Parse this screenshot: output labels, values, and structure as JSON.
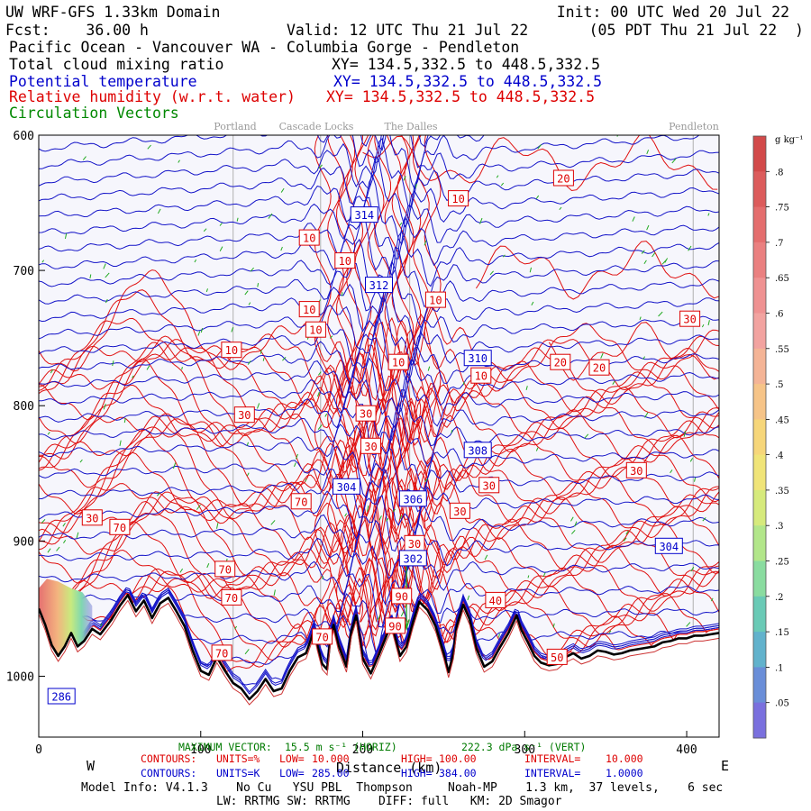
{
  "header": {
    "line1_left": "UW WRF-GFS 1.33km Domain",
    "line1_right": "Init: 00 UTC Wed 20 Jul 22",
    "line2_left": "Fcst:    36.00 h",
    "line2_mid": "Valid: 12 UTC Thu 21 Jul 22",
    "line2_right": "(05 PDT Thu 21 Jul 22  )",
    "line3": "Pacific Ocean - Vancouver WA - Columbia Gorge - Pendleton",
    "fields": [
      {
        "name": "Total cloud mixing ratio",
        "xy": "XY= 134.5,332.5 to 448.5,332.5",
        "color": "#000000"
      },
      {
        "name": "Potential temperature",
        "xy": "XY= 134.5,332.5 to 448.5,332.5",
        "color": "#0000cc"
      },
      {
        "name": "Relative humidity (w.r.t. water)",
        "xy": "XY= 134.5,332.5 to 448.5,332.5",
        "color": "#dd0000"
      },
      {
        "name": "Circulation Vectors",
        "xy": "",
        "color": "#008800"
      }
    ]
  },
  "locations": [
    "Portland",
    "Cascade Locks",
    "The Dalles",
    "Pendleton"
  ],
  "colorbar": {
    "unit": "g kg⁻¹",
    "labels": [
      ".8",
      ".75",
      ".7",
      ".65",
      ".6",
      ".55",
      ".5",
      ".45",
      ".4",
      ".35",
      ".3",
      ".25",
      ".2",
      ".15",
      ".1",
      ".05"
    ],
    "colors": [
      "#d24a4a",
      "#dc5c5c",
      "#e46e6e",
      "#ea8080",
      "#ef9292",
      "#f2a3a0",
      "#f4b496",
      "#f6c488",
      "#f6d67a",
      "#f0e478",
      "#d6ea7c",
      "#b2e68a",
      "#8adca0",
      "#6acab6",
      "#62b2cc",
      "#6a8ed8",
      "#7a70de"
    ]
  },
  "footer": {
    "max_vector_label": "MAXIMUM VECTOR:",
    "max_vector_horiz": "15.5 m s⁻¹ (HORIZ)",
    "max_vector_vert": "222.3 dPa s⁻¹ (VERT)",
    "west": "W",
    "east": "E",
    "xlabel": "Distance (km)",
    "red_contours": [
      "CONTOURS:",
      "UNITS=%",
      "LOW=",
      "10.000",
      "HIGH=",
      "100.00",
      "INTERVAL=",
      "10.000"
    ],
    "blue_contours": [
      "CONTOURS:",
      "UNITS=K",
      "LOW=",
      "285.00",
      "HIGH=",
      "384.00",
      "INTERVAL=",
      "1.0000"
    ],
    "model_info": "Model Info: V4.1.3    No Cu   YSU PBL  Thompson     Noah-MP    1.3 km,  37 levels,    6 sec",
    "model_info2": "LW: RRTMG SW: RRTMG    DIFF: full   KM: 2D Smagor"
  },
  "chart_data": {
    "type": "cross-section",
    "x_ticks": [
      0,
      100,
      200,
      300,
      400
    ],
    "xlim": [
      0,
      420
    ],
    "y_ticks": [
      600,
      700,
      800,
      900,
      1000
    ],
    "ylim": [
      600,
      1045
    ],
    "y_axis": "pressure (hPa), inverted",
    "terrain_pressure": [
      [
        0,
        950
      ],
      [
        4,
        962
      ],
      [
        8,
        977
      ],
      [
        12,
        985
      ],
      [
        16,
        978
      ],
      [
        20,
        968
      ],
      [
        24,
        978
      ],
      [
        28,
        974
      ],
      [
        33,
        965
      ],
      [
        38,
        969
      ],
      [
        45,
        958
      ],
      [
        50,
        948
      ],
      [
        55,
        940
      ],
      [
        60,
        952
      ],
      [
        65,
        944
      ],
      [
        70,
        957
      ],
      [
        75,
        946
      ],
      [
        80,
        942
      ],
      [
        85,
        952
      ],
      [
        90,
        963
      ],
      [
        95,
        981
      ],
      [
        100,
        996
      ],
      [
        105,
        999
      ],
      [
        110,
        986
      ],
      [
        115,
        996
      ],
      [
        120,
        1005
      ],
      [
        125,
        1009
      ],
      [
        130,
        1017
      ],
      [
        135,
        1011
      ],
      [
        140,
        1002
      ],
      [
        145,
        1011
      ],
      [
        150,
        1009
      ],
      [
        155,
        996
      ],
      [
        160,
        986
      ],
      [
        165,
        983
      ],
      [
        170,
        966
      ],
      [
        172,
        977
      ],
      [
        175,
        991
      ],
      [
        178,
        995
      ],
      [
        180,
        972
      ],
      [
        182,
        962
      ],
      [
        185,
        977
      ],
      [
        190,
        993
      ],
      [
        193,
        967
      ],
      [
        196,
        955
      ],
      [
        200,
        987
      ],
      [
        205,
        998
      ],
      [
        210,
        984
      ],
      [
        215,
        969
      ],
      [
        218,
        962
      ],
      [
        223,
        985
      ],
      [
        227,
        978
      ],
      [
        231,
        960
      ],
      [
        235,
        945
      ],
      [
        240,
        951
      ],
      [
        245,
        963
      ],
      [
        250,
        983
      ],
      [
        253,
        997
      ],
      [
        256,
        983
      ],
      [
        258,
        963
      ],
      [
        262,
        947
      ],
      [
        266,
        958
      ],
      [
        270,
        979
      ],
      [
        275,
        993
      ],
      [
        280,
        989
      ],
      [
        285,
        978
      ],
      [
        290,
        968
      ],
      [
        295,
        955
      ],
      [
        298,
        966
      ],
      [
        302,
        975
      ],
      [
        306,
        985
      ],
      [
        310,
        990
      ],
      [
        315,
        992
      ],
      [
        320,
        991
      ],
      [
        325,
        986
      ],
      [
        330,
        983
      ],
      [
        335,
        987
      ],
      [
        340,
        985
      ],
      [
        345,
        981
      ],
      [
        350,
        982
      ],
      [
        355,
        984
      ],
      [
        360,
        983
      ],
      [
        365,
        981
      ],
      [
        370,
        980
      ],
      [
        375,
        979
      ],
      [
        380,
        978
      ],
      [
        385,
        975
      ],
      [
        390,
        974
      ],
      [
        395,
        972
      ],
      [
        400,
        972
      ],
      [
        405,
        970
      ],
      [
        410,
        970
      ],
      [
        415,
        969
      ],
      [
        420,
        968
      ]
    ],
    "theta_labels": [
      {
        "text": "314",
        "x": 201,
        "p": 659
      },
      {
        "text": "312",
        "x": 210,
        "p": 711
      },
      {
        "text": "310",
        "x": 271,
        "p": 765
      },
      {
        "text": "308",
        "x": 271,
        "p": 833
      },
      {
        "text": "304",
        "x": 190,
        "p": 860
      },
      {
        "text": "306",
        "x": 231,
        "p": 869
      },
      {
        "text": "304",
        "x": 389,
        "p": 904
      },
      {
        "text": "302",
        "x": 231,
        "p": 913
      },
      {
        "text": "286",
        "x": 14,
        "p": 1015
      }
    ],
    "rh_labels": [
      {
        "text": "20",
        "x": 324,
        "p": 632
      },
      {
        "text": "10",
        "x": 259,
        "p": 647
      },
      {
        "text": "10",
        "x": 167,
        "p": 676
      },
      {
        "text": "10",
        "x": 189,
        "p": 693
      },
      {
        "text": "10",
        "x": 245,
        "p": 722
      },
      {
        "text": "10",
        "x": 167,
        "p": 729
      },
      {
        "text": "30",
        "x": 402,
        "p": 736
      },
      {
        "text": "10",
        "x": 171,
        "p": 744
      },
      {
        "text": "10",
        "x": 119,
        "p": 759
      },
      {
        "text": "10",
        "x": 222,
        "p": 768
      },
      {
        "text": "20",
        "x": 322,
        "p": 768
      },
      {
        "text": "20",
        "x": 346,
        "p": 772
      },
      {
        "text": "10",
        "x": 273,
        "p": 778
      },
      {
        "text": "30",
        "x": 127,
        "p": 807
      },
      {
        "text": "30",
        "x": 202,
        "p": 806
      },
      {
        "text": "30",
        "x": 205,
        "p": 830
      },
      {
        "text": "30",
        "x": 369,
        "p": 848
      },
      {
        "text": "30",
        "x": 278,
        "p": 859
      },
      {
        "text": "70",
        "x": 162,
        "p": 871
      },
      {
        "text": "30",
        "x": 260,
        "p": 878
      },
      {
        "text": "30",
        "x": 33,
        "p": 883
      },
      {
        "text": "70",
        "x": 50,
        "p": 890
      },
      {
        "text": "30",
        "x": 232,
        "p": 902
      },
      {
        "text": "70",
        "x": 115,
        "p": 921
      },
      {
        "text": "90",
        "x": 224,
        "p": 941
      },
      {
        "text": "70",
        "x": 119,
        "p": 942
      },
      {
        "text": "40",
        "x": 282,
        "p": 944
      },
      {
        "text": "90",
        "x": 220,
        "p": 963
      },
      {
        "text": "70",
        "x": 175,
        "p": 971
      },
      {
        "text": "70",
        "x": 113,
        "p": 983
      },
      {
        "text": "50",
        "x": 320,
        "p": 986
      }
    ]
  }
}
